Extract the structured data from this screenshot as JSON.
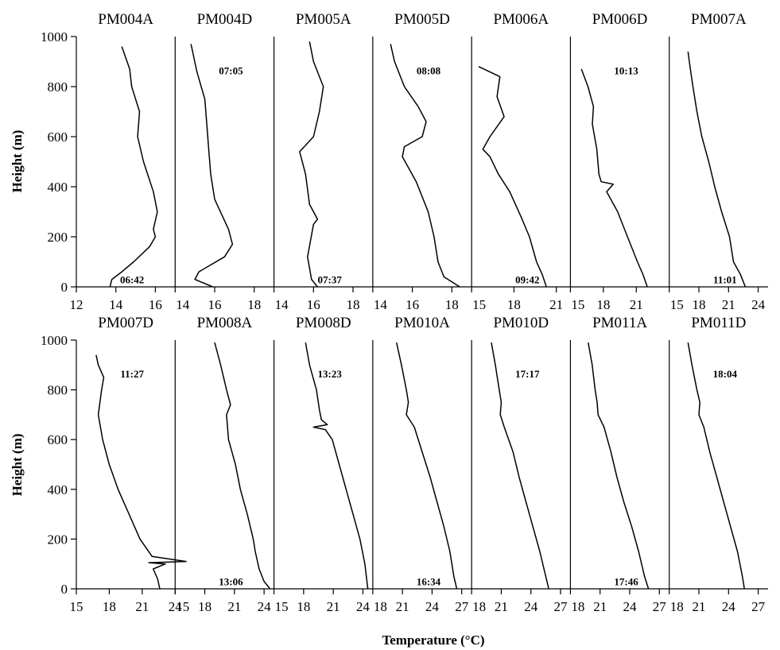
{
  "chart_data": {
    "type": "line",
    "ylabel": "Height (m)",
    "xlabel": "Temperature (°C)",
    "ylim": [
      0,
      1000
    ],
    "yticks": [
      "0",
      "200",
      "400",
      "600",
      "800",
      "1000"
    ],
    "grid": false,
    "panels": [
      {
        "name": "PM004A",
        "row": 0,
        "xlim": [
          12,
          17
        ],
        "xticks": [
          "12",
          "14",
          "16"
        ],
        "time": "06:42",
        "time_pos": "bottom",
        "profile": [
          [
            13.7,
            0
          ],
          [
            13.8,
            30
          ],
          [
            14.3,
            60
          ],
          [
            14.9,
            100
          ],
          [
            15.7,
            160
          ],
          [
            16.0,
            200
          ],
          [
            15.9,
            230
          ],
          [
            16.1,
            300
          ],
          [
            15.9,
            380
          ],
          [
            15.4,
            500
          ],
          [
            15.1,
            600
          ],
          [
            15.2,
            700
          ],
          [
            14.8,
            800
          ],
          [
            14.7,
            870
          ],
          [
            14.3,
            960
          ]
        ]
      },
      {
        "name": "PM004D",
        "row": 0,
        "xlim": [
          14,
          19
        ],
        "xticks": [
          "14",
          "16",
          "18"
        ],
        "time": "07:05",
        "time_pos": "top",
        "profile": [
          [
            15.9,
            0
          ],
          [
            15.0,
            30
          ],
          [
            15.2,
            60
          ],
          [
            16.5,
            120
          ],
          [
            16.9,
            170
          ],
          [
            16.7,
            230
          ],
          [
            16.0,
            350
          ],
          [
            15.8,
            450
          ],
          [
            15.7,
            550
          ],
          [
            15.6,
            650
          ],
          [
            15.5,
            750
          ],
          [
            15.1,
            860
          ],
          [
            14.8,
            970
          ]
        ]
      },
      {
        "name": "PM005A",
        "row": 0,
        "xlim": [
          14,
          19
        ],
        "xticks": [
          "14",
          "16",
          "18"
        ],
        "time": "07:37",
        "time_pos": "bottom",
        "profile": [
          [
            16.2,
            0
          ],
          [
            15.9,
            30
          ],
          [
            15.7,
            120
          ],
          [
            16.0,
            250
          ],
          [
            16.2,
            270
          ],
          [
            15.8,
            330
          ],
          [
            15.6,
            450
          ],
          [
            15.3,
            540
          ],
          [
            16.0,
            600
          ],
          [
            16.3,
            700
          ],
          [
            16.5,
            800
          ],
          [
            16.0,
            900
          ],
          [
            15.8,
            980
          ]
        ]
      },
      {
        "name": "PM005D",
        "row": 0,
        "xlim": [
          14,
          19
        ],
        "xticks": [
          "14",
          "16",
          "18"
        ],
        "time": "08:08",
        "time_pos": "top",
        "profile": [
          [
            18.4,
            0
          ],
          [
            17.6,
            40
          ],
          [
            17.3,
            100
          ],
          [
            17.1,
            200
          ],
          [
            16.8,
            300
          ],
          [
            16.2,
            420
          ],
          [
            15.5,
            520
          ],
          [
            15.6,
            560
          ],
          [
            16.5,
            600
          ],
          [
            16.7,
            660
          ],
          [
            16.3,
            720
          ],
          [
            15.6,
            800
          ],
          [
            15.1,
            900
          ],
          [
            14.9,
            970
          ]
        ]
      },
      {
        "name": "PM006A",
        "row": 0,
        "xlim": [
          15,
          22
        ],
        "xticks": [
          "15",
          "18",
          "21"
        ],
        "time": "09:42",
        "time_pos": "bottom",
        "profile": [
          [
            20.3,
            0
          ],
          [
            20.0,
            50
          ],
          [
            19.6,
            100
          ],
          [
            19.1,
            200
          ],
          [
            18.5,
            280
          ],
          [
            17.7,
            380
          ],
          [
            16.9,
            450
          ],
          [
            16.3,
            520
          ],
          [
            15.8,
            550
          ],
          [
            16.3,
            600
          ],
          [
            17.3,
            680
          ],
          [
            16.8,
            760
          ],
          [
            17.0,
            840
          ],
          [
            15.5,
            880
          ]
        ]
      },
      {
        "name": "PM006D",
        "row": 0,
        "xlim": [
          15,
          24
        ],
        "xticks": [
          "15",
          "18",
          "21"
        ],
        "time": "10:13",
        "time_pos": "top",
        "profile": [
          [
            22.0,
            0
          ],
          [
            21.6,
            50
          ],
          [
            21.1,
            100
          ],
          [
            20.2,
            200
          ],
          [
            19.3,
            300
          ],
          [
            18.3,
            380
          ],
          [
            18.9,
            410
          ],
          [
            17.8,
            420
          ],
          [
            17.6,
            450
          ],
          [
            17.4,
            550
          ],
          [
            17.0,
            650
          ],
          [
            17.1,
            720
          ],
          [
            16.6,
            800
          ],
          [
            16.0,
            870
          ]
        ]
      },
      {
        "name": "PM007A",
        "row": 0,
        "xlim": [
          15,
          25
        ],
        "xticks": [
          "15",
          "18",
          "21",
          "24"
        ],
        "time": "11:01",
        "time_pos": "bottom",
        "profile": [
          [
            22.7,
            0
          ],
          [
            22.2,
            50
          ],
          [
            21.5,
            100
          ],
          [
            21.1,
            200
          ],
          [
            20.3,
            300
          ],
          [
            19.6,
            400
          ],
          [
            19.0,
            500
          ],
          [
            18.3,
            600
          ],
          [
            17.8,
            700
          ],
          [
            17.4,
            800
          ],
          [
            17.1,
            880
          ],
          [
            16.9,
            940
          ]
        ]
      },
      {
        "name": "PM007D",
        "row": 1,
        "xlim": [
          15,
          24
        ],
        "xticks": [
          "15",
          "18",
          "21",
          "24"
        ],
        "time": "11:27",
        "time_pos": "top",
        "profile": [
          [
            22.6,
            0
          ],
          [
            22.4,
            40
          ],
          [
            22.0,
            80
          ],
          [
            23.1,
            100
          ],
          [
            21.6,
            105
          ],
          [
            25.0,
            110
          ],
          [
            21.9,
            130
          ],
          [
            20.8,
            200
          ],
          [
            19.8,
            300
          ],
          [
            18.8,
            400
          ],
          [
            18.0,
            500
          ],
          [
            17.4,
            600
          ],
          [
            17.0,
            700
          ],
          [
            17.3,
            800
          ],
          [
            17.5,
            850
          ],
          [
            17.0,
            900
          ],
          [
            16.8,
            940
          ]
        ]
      },
      {
        "name": "PM008A",
        "row": 1,
        "xlim": [
          15,
          25
        ],
        "xticks": [
          "15",
          "18",
          "21",
          "24"
        ],
        "time": "13:06",
        "time_pos": "bottom",
        "profile": [
          [
            24.6,
            0
          ],
          [
            24.0,
            30
          ],
          [
            23.5,
            80
          ],
          [
            23.1,
            150
          ],
          [
            22.9,
            200
          ],
          [
            22.3,
            300
          ],
          [
            21.6,
            400
          ],
          [
            21.1,
            500
          ],
          [
            20.4,
            600
          ],
          [
            20.2,
            700
          ],
          [
            20.6,
            740
          ],
          [
            20.2,
            800
          ],
          [
            19.6,
            900
          ],
          [
            19.0,
            990
          ]
        ]
      },
      {
        "name": "PM008D",
        "row": 1,
        "xlim": [
          15,
          25
        ],
        "xticks": [
          "15",
          "18",
          "21",
          "24"
        ],
        "time": "13:23",
        "time_pos": "top",
        "profile": [
          [
            24.5,
            0
          ],
          [
            24.2,
            100
          ],
          [
            23.7,
            200
          ],
          [
            23.0,
            300
          ],
          [
            22.3,
            400
          ],
          [
            21.6,
            500
          ],
          [
            20.9,
            600
          ],
          [
            20.2,
            640
          ],
          [
            19.0,
            650
          ],
          [
            20.4,
            660
          ],
          [
            19.8,
            680
          ],
          [
            19.6,
            720
          ],
          [
            19.3,
            800
          ],
          [
            18.6,
            900
          ],
          [
            18.2,
            990
          ]
        ]
      },
      {
        "name": "PM010A",
        "row": 1,
        "xlim": [
          18,
          28
        ],
        "xticks": [
          "18",
          "21",
          "24",
          "27"
        ],
        "time": "16:34",
        "time_pos": "bottom",
        "profile": [
          [
            26.5,
            0
          ],
          [
            26.2,
            50
          ],
          [
            25.8,
            150
          ],
          [
            25.2,
            250
          ],
          [
            24.5,
            350
          ],
          [
            23.8,
            450
          ],
          [
            23.0,
            550
          ],
          [
            22.2,
            650
          ],
          [
            21.4,
            700
          ],
          [
            21.6,
            750
          ],
          [
            21.4,
            800
          ],
          [
            20.9,
            900
          ],
          [
            20.4,
            990
          ]
        ]
      },
      {
        "name": "PM010D",
        "row": 1,
        "xlim": [
          18,
          28
        ],
        "xticks": [
          "18",
          "21",
          "24",
          "27"
        ],
        "time": "17:17",
        "time_pos": "top",
        "profile": [
          [
            25.8,
            0
          ],
          [
            25.5,
            50
          ],
          [
            24.9,
            150
          ],
          [
            24.2,
            250
          ],
          [
            23.5,
            350
          ],
          [
            22.8,
            450
          ],
          [
            22.2,
            550
          ],
          [
            21.3,
            650
          ],
          [
            20.9,
            700
          ],
          [
            21.0,
            750
          ],
          [
            20.8,
            800
          ],
          [
            20.4,
            900
          ],
          [
            20.0,
            990
          ]
        ]
      },
      {
        "name": "PM011A",
        "row": 1,
        "xlim": [
          18,
          28
        ],
        "xticks": [
          "18",
          "21",
          "24",
          "27"
        ],
        "time": "17:46",
        "time_pos": "bottom",
        "profile": [
          [
            25.9,
            0
          ],
          [
            25.5,
            50
          ],
          [
            24.9,
            150
          ],
          [
            24.2,
            250
          ],
          [
            23.4,
            350
          ],
          [
            22.7,
            450
          ],
          [
            22.1,
            550
          ],
          [
            21.4,
            650
          ],
          [
            20.8,
            700
          ],
          [
            20.7,
            750
          ],
          [
            20.5,
            800
          ],
          [
            20.2,
            900
          ],
          [
            19.8,
            990
          ]
        ]
      },
      {
        "name": "PM011D",
        "row": 1,
        "xlim": [
          18,
          28
        ],
        "xticks": [
          "18",
          "21",
          "24",
          "27"
        ],
        "time": "18:04",
        "time_pos": "top",
        "profile": [
          [
            25.6,
            0
          ],
          [
            25.4,
            50
          ],
          [
            24.9,
            150
          ],
          [
            24.2,
            250
          ],
          [
            23.5,
            350
          ],
          [
            22.8,
            450
          ],
          [
            22.1,
            550
          ],
          [
            21.5,
            650
          ],
          [
            21.0,
            700
          ],
          [
            21.1,
            750
          ],
          [
            20.8,
            800
          ],
          [
            20.3,
            900
          ],
          [
            19.9,
            990
          ]
        ]
      }
    ]
  }
}
